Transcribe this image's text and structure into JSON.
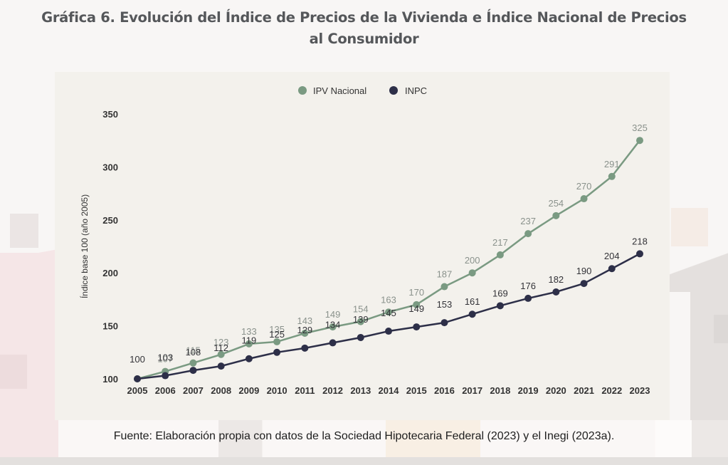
{
  "title": "Gráfica 6. Evolución del Índice de Precios de la Vivienda e Índice Nacional de Precios al Consumidor",
  "title_lines": [
    "Gráfica 6. Evolución del Índice de Precios de la Vivienda e Índice Nacional de Precios",
    "al Consumidor"
  ],
  "footer": "Fuente: Elaboración propia con datos de la Sociedad Hipotecaria Federal (2023) y el Inegi (2023a).",
  "chart_data": {
    "type": "line",
    "title": "Gráfica 6. Evolución del Índice de Precios de la Vivienda e Índice Nacional de Precios al Consumidor",
    "xlabel": "",
    "ylabel": "Índice base 100 (año 2005)",
    "x": [
      "2005",
      "2006",
      "2007",
      "2008",
      "2009",
      "2010",
      "2011",
      "2012",
      "2013",
      "2014",
      "2015",
      "2016",
      "2017",
      "2018",
      "2019",
      "2020",
      "2021",
      "2022",
      "2023"
    ],
    "ylim": [
      100,
      350
    ],
    "yticks": [
      100,
      150,
      200,
      250,
      300,
      350
    ],
    "grid": false,
    "legend_position": "top-center",
    "series": [
      {
        "name": "IPV Nacional",
        "color": "#7a9a82",
        "label_color": "#8a928c",
        "values": [
          100,
          107,
          115,
          123,
          133,
          135,
          143,
          149,
          154,
          163,
          170,
          187,
          200,
          217,
          237,
          254,
          270,
          291,
          325
        ]
      },
      {
        "name": "INPC",
        "color": "#2d2f48",
        "label_color": "#333338",
        "values": [
          100,
          103,
          108,
          112,
          119,
          125,
          129,
          134,
          139,
          145,
          149,
          153,
          161,
          169,
          176,
          182,
          190,
          204,
          218
        ]
      }
    ]
  }
}
